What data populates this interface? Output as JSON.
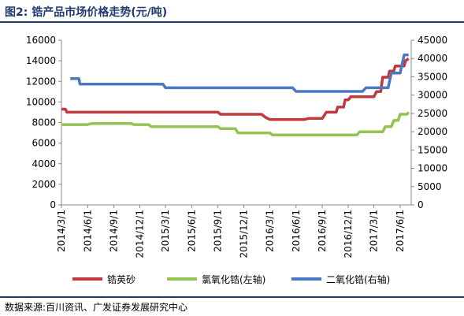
{
  "header": {
    "title": "图2: 锆产品市场价格走势(元/吨)"
  },
  "footer": {
    "source": "数据来源:百川资讯、广发证券发展研究中心"
  },
  "chart_data": {
    "type": "line",
    "x_ticks": [
      "2014/3/1",
      "2014/6/1",
      "2014/9/1",
      "2014/12/1",
      "2015/3/1",
      "2015/6/1",
      "2015/9/1",
      "2015/12/1",
      "2016/3/1",
      "2016/6/1",
      "2016/9/1",
      "2016/12/1",
      "2017/3/1",
      "2017/6/1"
    ],
    "y_left": {
      "ylim": [
        0,
        16000
      ],
      "ticks": [
        0,
        2000,
        4000,
        6000,
        8000,
        10000,
        12000,
        14000,
        16000
      ]
    },
    "y_right": {
      "ylim": [
        0,
        45000
      ],
      "ticks": [
        0,
        5000,
        10000,
        15000,
        20000,
        25000,
        30000,
        35000,
        40000,
        45000
      ]
    },
    "grid": false,
    "legend_position": "bottom",
    "series": [
      {
        "name": "锆英砂",
        "axis": "left",
        "color": "#c0393b",
        "points": [
          [
            "2014/3/1",
            9300
          ],
          [
            "2014/3/15",
            9300
          ],
          [
            "2014/3/20",
            9000
          ],
          [
            "2014/12/1",
            9000
          ],
          [
            "2015/3/1",
            9000
          ],
          [
            "2015/6/1",
            9000
          ],
          [
            "2015/9/1",
            9000
          ],
          [
            "2015/9/10",
            8800
          ],
          [
            "2015/12/1",
            8800
          ],
          [
            "2016/2/1",
            8800
          ],
          [
            "2016/2/15",
            8500
          ],
          [
            "2016/3/1",
            8300
          ],
          [
            "2016/6/1",
            8300
          ],
          [
            "2016/7/1",
            8300
          ],
          [
            "2016/7/15",
            8400
          ],
          [
            "2016/9/1",
            8400
          ],
          [
            "2016/9/15",
            9000
          ],
          [
            "2016/10/20",
            9000
          ],
          [
            "2016/10/25",
            9500
          ],
          [
            "2016/11/15",
            9500
          ],
          [
            "2016/11/20",
            10200
          ],
          [
            "2016/12/1",
            10200
          ],
          [
            "2016/12/10",
            10500
          ],
          [
            "2017/3/1",
            10500
          ],
          [
            "2017/3/10",
            11000
          ],
          [
            "2017/3/25",
            11000
          ],
          [
            "2017/4/1",
            12400
          ],
          [
            "2017/4/20",
            12400
          ],
          [
            "2017/4/25",
            13000
          ],
          [
            "2017/5/10",
            13000
          ],
          [
            "2017/5/15",
            13500
          ],
          [
            "2017/6/15",
            13500
          ],
          [
            "2017/6/20",
            14000
          ],
          [
            "2017/7/1",
            14200
          ]
        ]
      },
      {
        "name": "氯氧化锆(左轴)",
        "axis": "left",
        "color": "#92c353",
        "points": [
          [
            "2014/3/1",
            7800
          ],
          [
            "2014/6/1",
            7800
          ],
          [
            "2014/6/15",
            7900
          ],
          [
            "2014/11/1",
            7900
          ],
          [
            "2014/11/10",
            7800
          ],
          [
            "2015/1/1",
            7800
          ],
          [
            "2015/1/10",
            7600
          ],
          [
            "2015/9/1",
            7600
          ],
          [
            "2015/9/10",
            7400
          ],
          [
            "2015/11/1",
            7400
          ],
          [
            "2015/11/10",
            7000
          ],
          [
            "2016/3/1",
            7000
          ],
          [
            "2016/3/10",
            6800
          ],
          [
            "2016/4/1",
            6800
          ],
          [
            "2016/4/10",
            6800
          ],
          [
            "2017/1/1",
            6800
          ],
          [
            "2017/1/10",
            7100
          ],
          [
            "2017/4/1",
            7100
          ],
          [
            "2017/4/10",
            7600
          ],
          [
            "2017/5/1",
            7600
          ],
          [
            "2017/5/10",
            8200
          ],
          [
            "2017/5/25",
            8200
          ],
          [
            "2017/6/1",
            8800
          ],
          [
            "2017/6/25",
            8800
          ],
          [
            "2017/7/1",
            9000
          ]
        ]
      },
      {
        "name": "二氧化锆(右轴)",
        "axis": "right",
        "color": "#4a78c2",
        "points": [
          [
            "2014/4/1",
            34500
          ],
          [
            "2014/5/1",
            34500
          ],
          [
            "2014/5/5",
            33000
          ],
          [
            "2015/2/20",
            33000
          ],
          [
            "2015/3/1",
            32000
          ],
          [
            "2016/5/20",
            32000
          ],
          [
            "2016/6/1",
            31000
          ],
          [
            "2017/1/20",
            31000
          ],
          [
            "2017/2/1",
            32000
          ],
          [
            "2017/4/20",
            32000
          ],
          [
            "2017/5/1",
            36000
          ],
          [
            "2017/6/1",
            36000
          ],
          [
            "2017/6/15",
            41000
          ],
          [
            "2017/7/1",
            41000
          ]
        ]
      }
    ]
  }
}
